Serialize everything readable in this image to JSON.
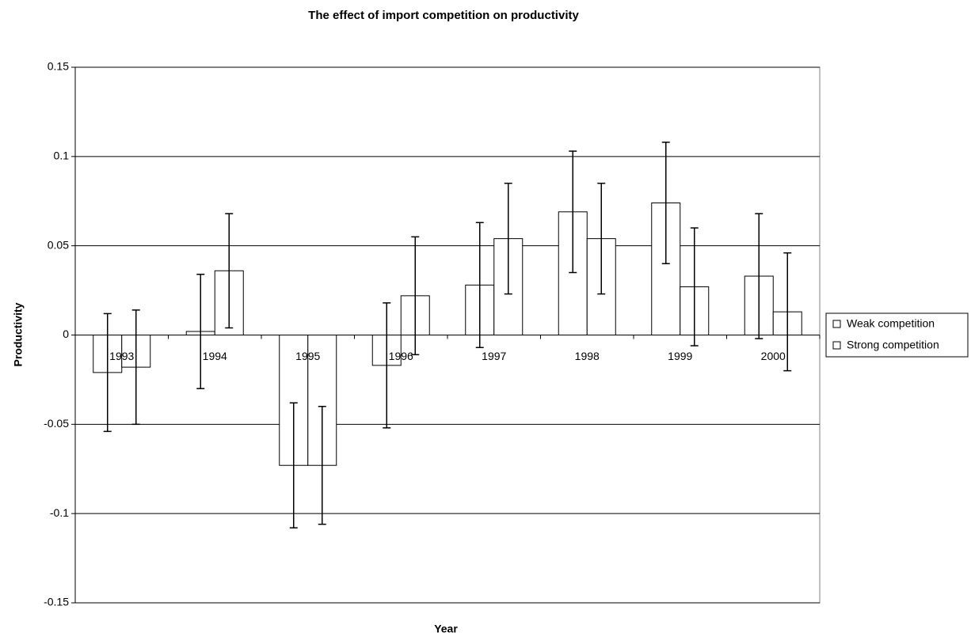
{
  "chart_data": {
    "type": "bar",
    "title": "The effect of import competition on productivity",
    "x_label": "Year",
    "y_label": "Productivity",
    "categories": [
      "1993",
      "1994",
      "1995",
      "1996",
      "1997",
      "1998",
      "1999",
      "2000"
    ],
    "series": [
      {
        "name": "Weak competition",
        "color": "#ffffff",
        "values": [
          -0.021,
          0.002,
          -0.073,
          -0.017,
          0.028,
          0.069,
          0.074,
          0.033
        ],
        "errors": [
          0.033,
          0.032,
          0.035,
          0.035,
          0.035,
          0.034,
          0.034,
          0.035
        ]
      },
      {
        "name": "Strong competition",
        "color": "#ffffff",
        "values": [
          -0.018,
          0.036,
          -0.073,
          0.022,
          0.054,
          0.054,
          0.027,
          0.013
        ],
        "errors": [
          0.032,
          0.032,
          0.033,
          0.033,
          0.031,
          0.031,
          0.033,
          0.033
        ]
      }
    ],
    "ylim": [
      -0.15,
      0.15
    ],
    "yticks": [
      -0.15,
      -0.1,
      -0.05,
      0,
      0.05,
      0.1,
      0.15
    ],
    "grid": true,
    "legend": "right"
  }
}
